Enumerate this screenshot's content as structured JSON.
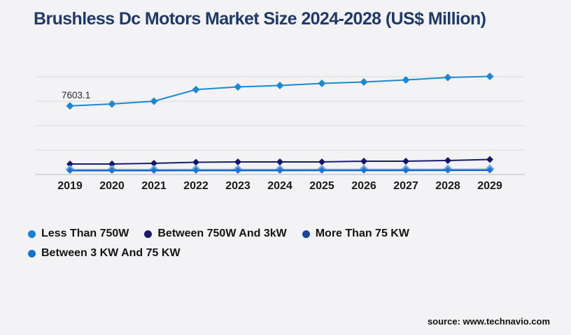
{
  "page": {
    "title": "Brushless Dc Motors Market Size 2024-2028 (US$ Million)",
    "source": "source: www.technavio.com"
  },
  "colors": {
    "background": "#f3f3f5",
    "title": "#1f3a68",
    "gridline": "#dcdcdf",
    "axis": "#c4c4c8",
    "tick_text": "#1a1a1a",
    "annotation_text": "#2b2b2b"
  },
  "chart_data": {
    "type": "line",
    "title": "Brushless Dc Motors Market Size 2024-2028 (US$ Million)",
    "x": [
      2019,
      2020,
      2021,
      2022,
      2023,
      2024,
      2025,
      2026,
      2027,
      2028,
      2029
    ],
    "x_tick_labels": [
      "2019",
      "2020",
      "2021",
      "2022",
      "2023",
      "2024",
      "2025",
      "2026",
      "2027",
      "2028",
      "2029"
    ],
    "ylim": [
      0,
      11000
    ],
    "grid": true,
    "y_axis_labels_visible": false,
    "legend_position": "bottom-left",
    "marker": "diamond",
    "annotation": {
      "series": "Less Than 750W",
      "x": 2019,
      "label": "7603.1",
      "value": 7603.1
    },
    "series": [
      {
        "name": "Less Than 750W",
        "legend_color": "#1c7fd2",
        "line_color": "#1e87d2",
        "marker_color": "#1e87d2",
        "values": [
          7603.1,
          7810,
          8120,
          9410,
          9710,
          9860,
          10095,
          10250,
          10480,
          10750,
          10870
        ]
      },
      {
        "name": "Between 750W And 3kW",
        "legend_color": "#1b1b6e",
        "line_color": "#1b1b6e",
        "marker_color": "#15156a",
        "values": [
          1160,
          1160,
          1240,
          1350,
          1390,
          1390,
          1390,
          1470,
          1470,
          1550,
          1660
        ]
      },
      {
        "name": "More Than 75 KW",
        "legend_color": "#1b459e",
        "line_color": "#1467c6",
        "marker_color": "#1b74d4",
        "values": [
          440,
          440,
          445,
          450,
          455,
          455,
          460,
          460,
          465,
          470,
          480
        ]
      },
      {
        "name": "Between 3 KW And 75 KW",
        "legend_color": "#1272d4",
        "line_color": "#a6c9ef",
        "marker_color": "#6aa8e6",
        "values": [
          560,
          560,
          565,
          570,
          575,
          575,
          580,
          585,
          590,
          595,
          610
        ]
      }
    ]
  }
}
